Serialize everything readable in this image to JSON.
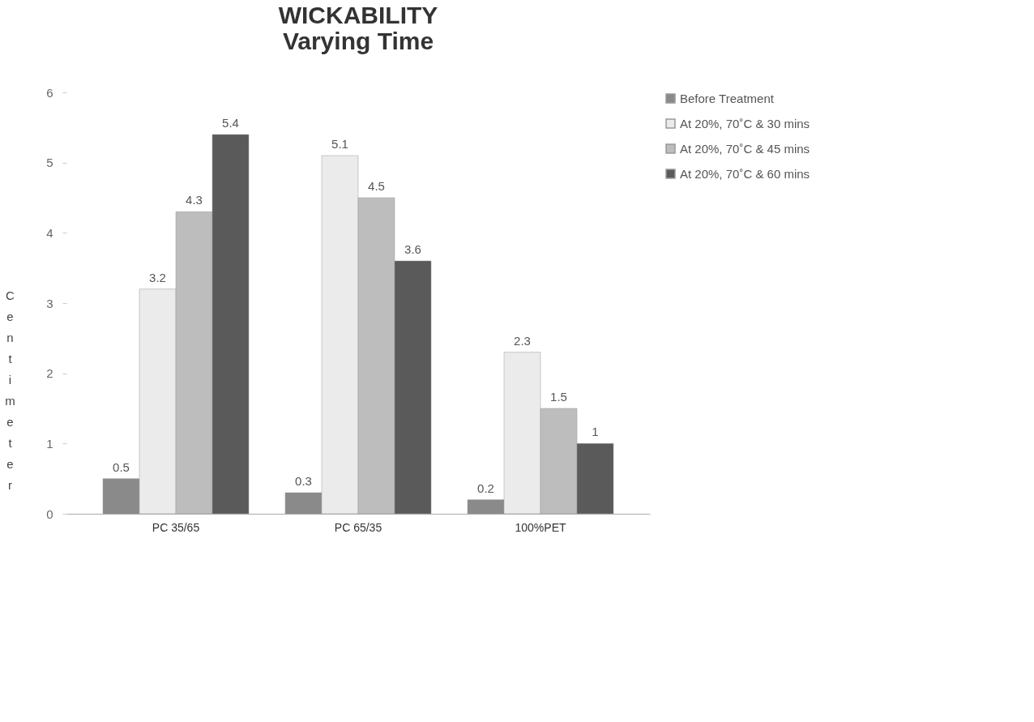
{
  "chart_data": {
    "type": "bar",
    "title": [
      "WICKABILITY",
      "Varying Time"
    ],
    "ylabel": "Centimeter",
    "categories": [
      "PC 35/65",
      "PC 65/35",
      "100%PET"
    ],
    "series": [
      {
        "name": "Before Treatment",
        "color": "#8a8a8a",
        "values": [
          0.5,
          0.3,
          0.2
        ]
      },
      {
        "name": "At 20%, 70˚C & 30 mins",
        "color": "#ebebeb",
        "values": [
          3.2,
          5.1,
          2.3
        ]
      },
      {
        "name": "At 20%, 70˚C & 45 mins",
        "color": "#bdbdbd",
        "values": [
          4.3,
          4.5,
          1.5
        ]
      },
      {
        "name": "At 20%, 70˚C & 60 mins",
        "color": "#5a5a5a",
        "values": [
          5.4,
          3.6,
          1
        ]
      }
    ],
    "ylim": [
      0,
      6
    ],
    "yticks": [
      0,
      1,
      2,
      3,
      4,
      5,
      6
    ],
    "grid": false,
    "legend": "right",
    "data_labels": true
  }
}
